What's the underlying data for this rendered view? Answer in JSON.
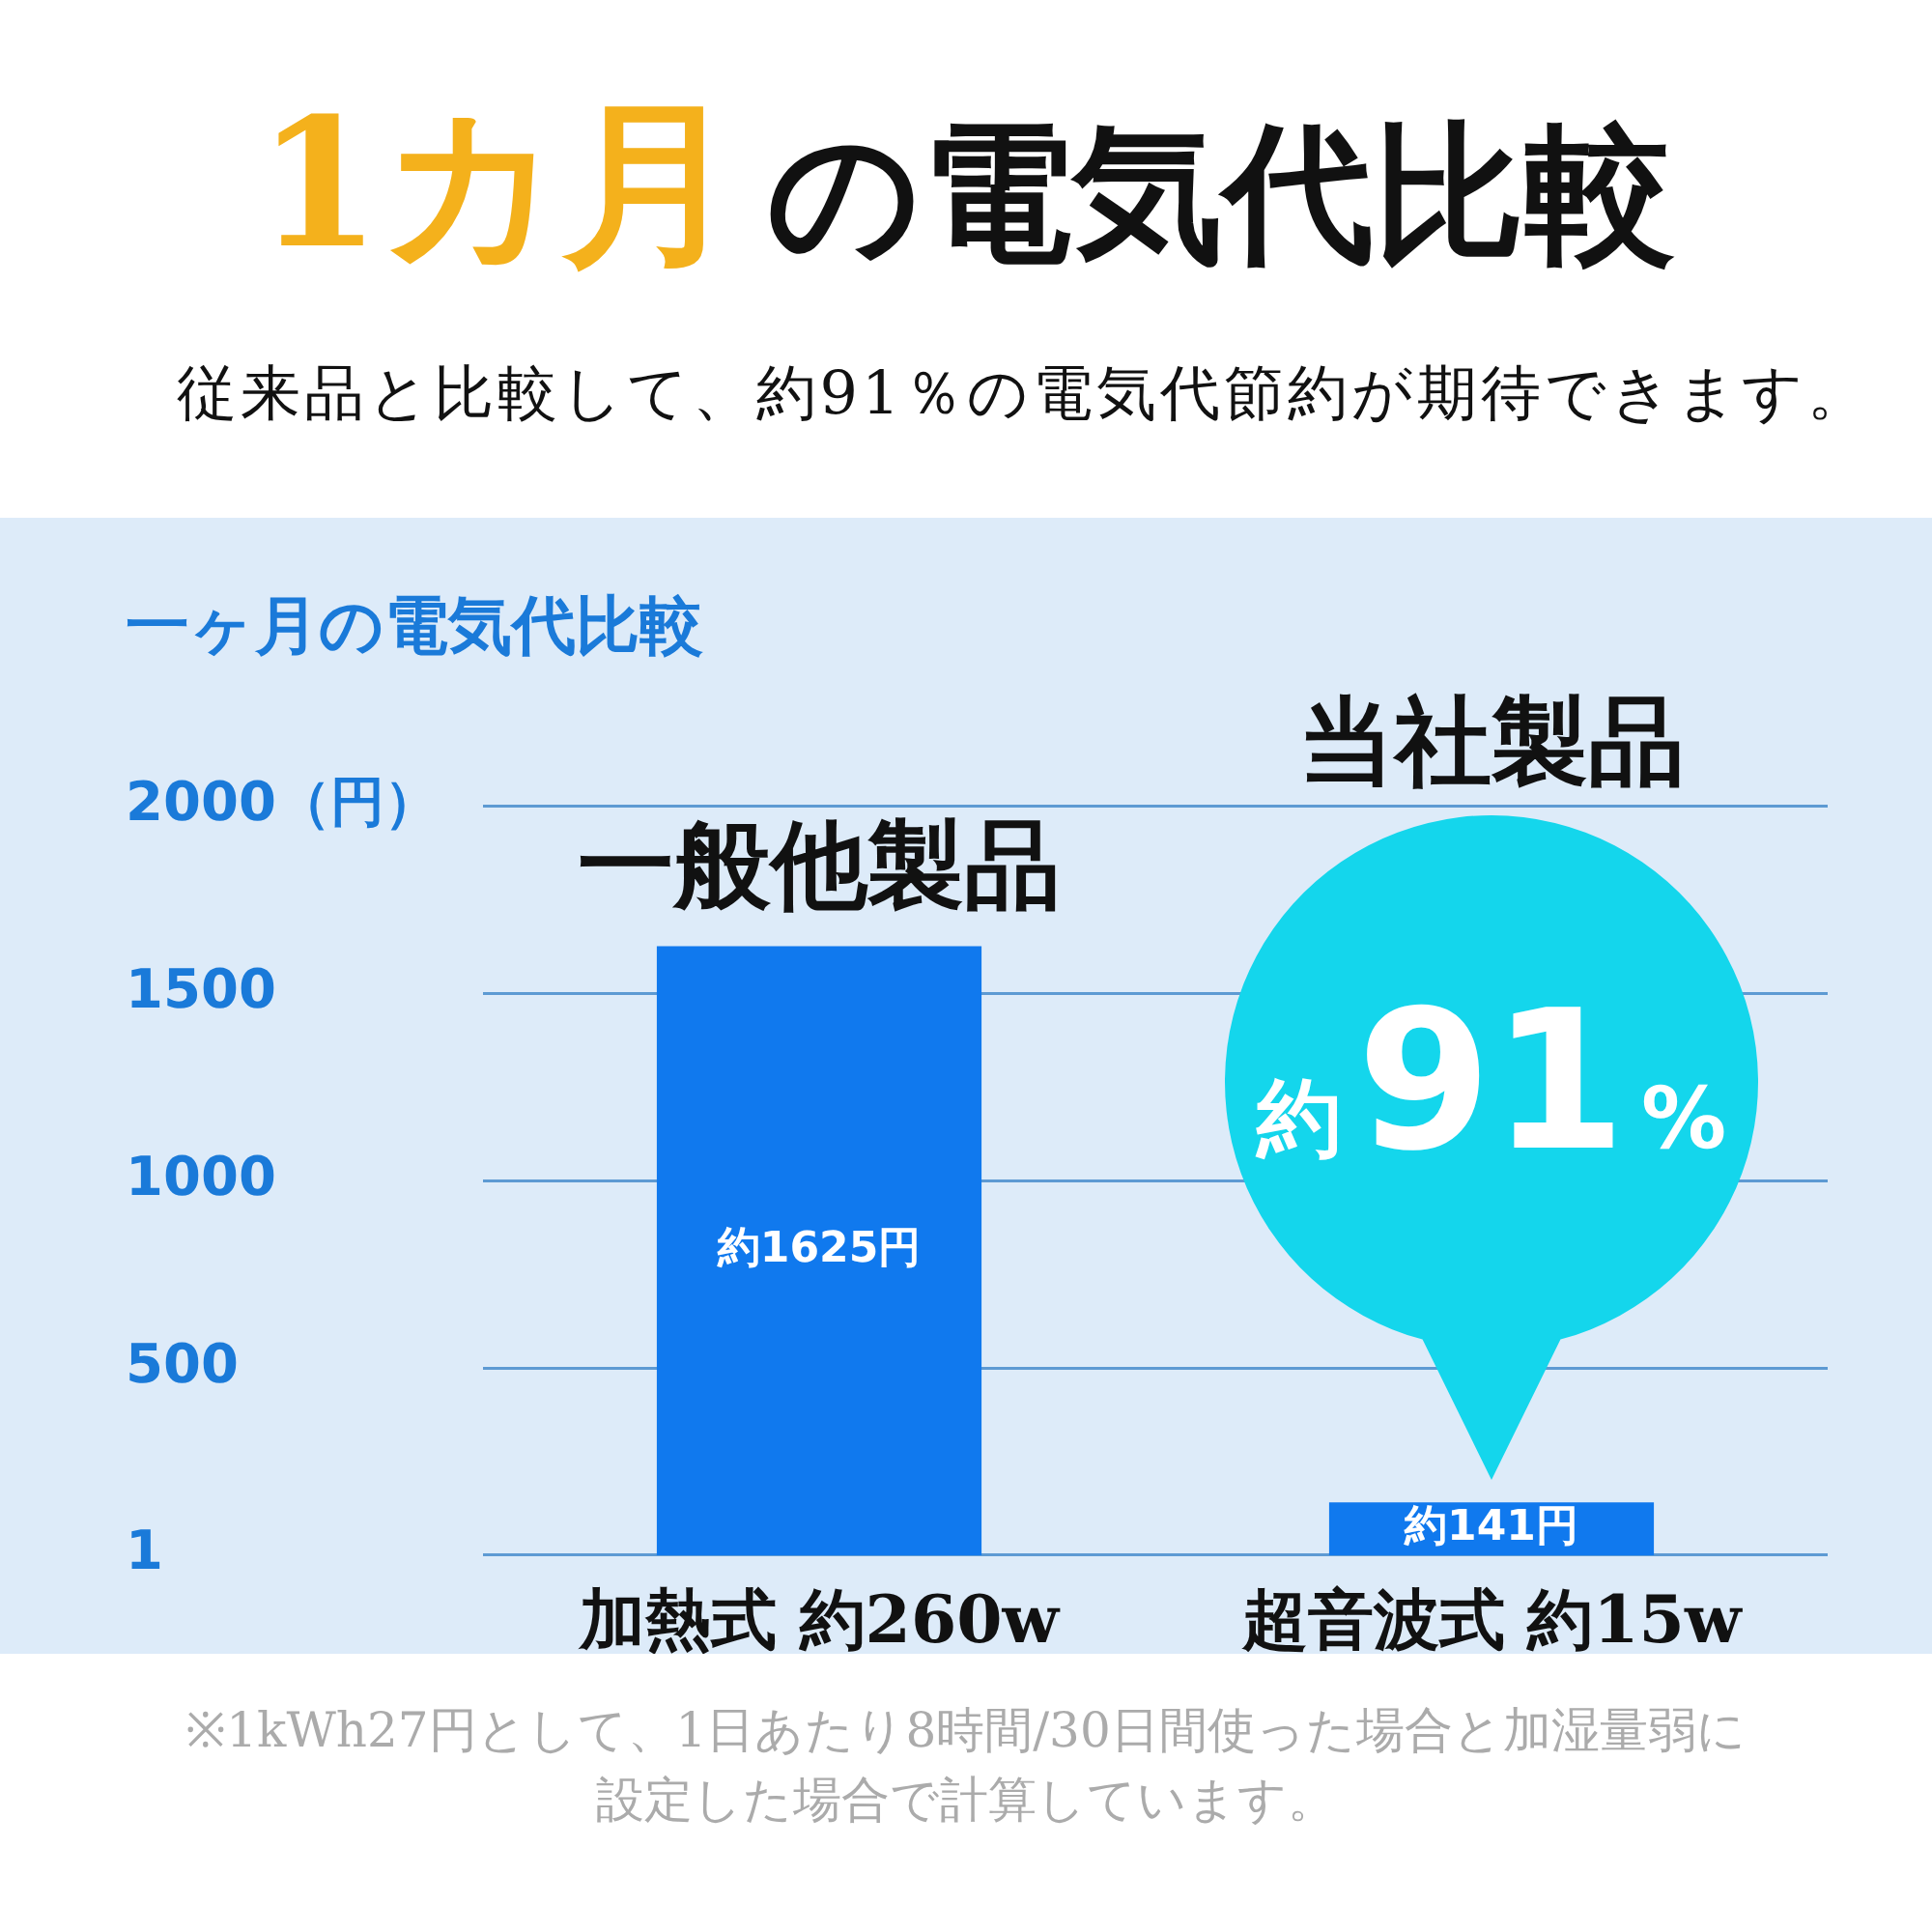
{
  "chart_data": {
    "type": "bar",
    "title": "1カ月の電気代比較",
    "subtitle": "従来品と比較して、約91％の電気代節約が期待できます。",
    "ylabel": "一ヶ月の電気代比較",
    "categories": [
      "加熱式 約260w",
      "超音波式 約15w"
    ],
    "values": [
      1625,
      141
    ],
    "colors": [
      "#1079ee",
      "#1079ee"
    ],
    "value_labels": [
      "約1625円",
      "約141円"
    ],
    "ylim": [
      0,
      2000
    ],
    "yticks": [
      1,
      500,
      1000,
      1500,
      {
        "value": 2000,
        "label": "2000（円）"
      }
    ],
    "grid": "y",
    "legend": false,
    "annotations": [
      {
        "text": "一般他製品",
        "x": "加熱式 約260w",
        "y": 1625
      },
      {
        "text": "約91%",
        "x": "超音波式 約15w",
        "y": 141
      },
      "当社製品",
      "※1kWh27円として、1日あたり8時間/30日間使った場合と加湿量弱に設定した場合で計算しています。"
    ]
  }
}
